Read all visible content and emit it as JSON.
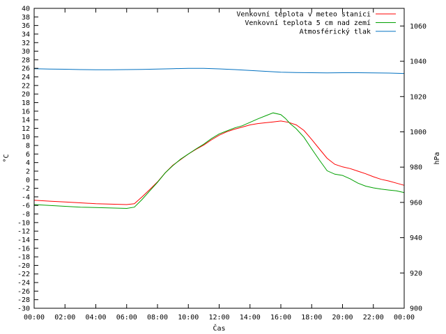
{
  "chart_data": {
    "type": "line",
    "xlabel": "Čas",
    "ylabel": "°C",
    "y2label": "hPa",
    "x_range_hours": [
      0,
      24
    ],
    "ylim": [
      -30,
      40
    ],
    "y2lim": [
      900,
      1070
    ],
    "grid": false,
    "legend_placement": "top-right",
    "x_ticks": [
      "00:00",
      "02:00",
      "04:00",
      "06:00",
      "08:00",
      "10:00",
      "12:00",
      "14:00",
      "16:00",
      "18:00",
      "20:00",
      "22:00",
      "00:00"
    ],
    "y_ticks": [
      40,
      38,
      36,
      34,
      32,
      30,
      28,
      26,
      24,
      22,
      20,
      18,
      16,
      14,
      12,
      10,
      8,
      6,
      4,
      2,
      0,
      -2,
      -4,
      -6,
      -8,
      -10,
      -12,
      -14,
      -16,
      -18,
      -20,
      -22,
      -24,
      -26,
      -28,
      -30
    ],
    "y2_ticks": [
      1060,
      1040,
      1020,
      1000,
      980,
      960,
      940,
      920,
      900
    ],
    "series": [
      {
        "name": "Venkovní teplota v meteo stanici",
        "color": "#ff0000",
        "axis": "left",
        "x": [
          0,
          1,
          2,
          3,
          4,
          5,
          6,
          6.5,
          7,
          7.5,
          8,
          8.5,
          9,
          9.5,
          10,
          10.5,
          11,
          11.5,
          12,
          12.5,
          13,
          13.5,
          14,
          14.5,
          15,
          15.5,
          16,
          16.5,
          17,
          17.5,
          18,
          18.5,
          19,
          19.5,
          20,
          20.5,
          21,
          21.5,
          22,
          22.5,
          23,
          23.5,
          24
        ],
        "values": [
          -4.8,
          -5,
          -5.2,
          -5.4,
          -5.6,
          -5.7,
          -5.8,
          -5.6,
          -4,
          -2.3,
          -0.5,
          1.6,
          3.4,
          4.7,
          6,
          7.1,
          8.1,
          9.3,
          10.4,
          11.2,
          11.8,
          12.3,
          12.8,
          13.1,
          13.3,
          13.5,
          13.7,
          13.4,
          12.8,
          11.5,
          9.4,
          7.2,
          5,
          3.6,
          3,
          2.6,
          2,
          1.4,
          0.7,
          0.1,
          -0.3,
          -0.8,
          -1.3
        ]
      },
      {
        "name": "Venkovní teplota 5 cm nad zemí",
        "color": "#00a000",
        "axis": "left",
        "x": [
          0,
          1,
          2,
          3,
          4,
          5,
          6,
          6.5,
          7,
          7.5,
          8,
          8.5,
          9,
          9.5,
          10,
          10.5,
          11,
          11.5,
          12,
          12.5,
          13,
          13.5,
          14,
          14.5,
          15,
          15.5,
          16,
          16.3,
          16.6,
          17,
          17.5,
          18,
          18.5,
          19,
          19.5,
          20,
          20.5,
          21,
          21.5,
          22,
          22.5,
          23,
          23.5,
          24
        ],
        "values": [
          -5.8,
          -6,
          -6.2,
          -6.4,
          -6.5,
          -6.6,
          -6.7,
          -6.4,
          -4.6,
          -2.6,
          -0.6,
          1.6,
          3.3,
          4.8,
          6,
          7.2,
          8.3,
          9.6,
          10.7,
          11.4,
          12.1,
          12.6,
          13.4,
          14.2,
          14.9,
          15.6,
          15.2,
          14.3,
          13.1,
          11.9,
          9.9,
          7.2,
          4.6,
          2.1,
          1.3,
          1,
          0.2,
          -0.8,
          -1.5,
          -1.9,
          -2.2,
          -2.4,
          -2.6,
          -3
        ]
      },
      {
        "name": "Atmosférický tlak",
        "color": "#0070c0",
        "axis": "right",
        "x": [
          0,
          1,
          2,
          3,
          4,
          5,
          6,
          7,
          8,
          9,
          10,
          11,
          12,
          13,
          14,
          15,
          16,
          17,
          18,
          19,
          20,
          21,
          22,
          23,
          24
        ],
        "values": [
          1035.8,
          1035.6,
          1035.5,
          1035.3,
          1035.2,
          1035.2,
          1035.3,
          1035.4,
          1035.6,
          1035.8,
          1036,
          1036,
          1035.7,
          1035.3,
          1034.8,
          1034.3,
          1033.8,
          1033.6,
          1033.5,
          1033.4,
          1033.5,
          1033.5,
          1033.4,
          1033.3,
          1033.1
        ]
      }
    ]
  }
}
